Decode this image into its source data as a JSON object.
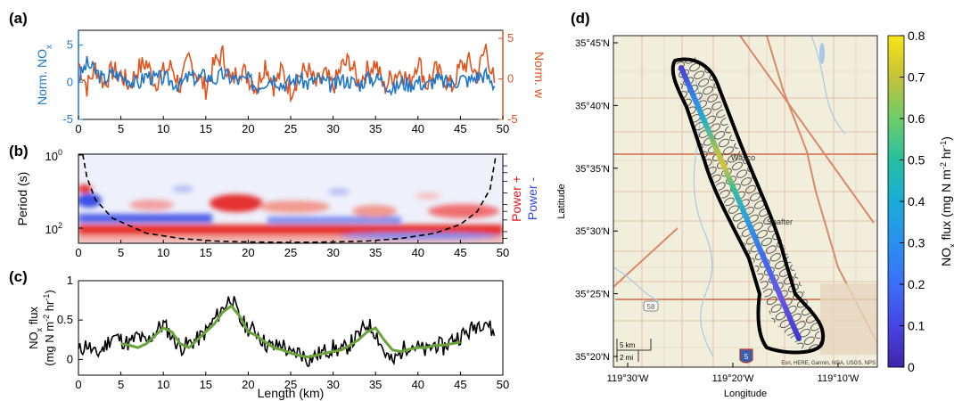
{
  "panel_a": {
    "label": "(a)",
    "left_axis": {
      "label_main": "Norm. NO",
      "label_sub": "x",
      "ticks": [
        "5",
        "0",
        "-5"
      ],
      "color": "#1f77c9"
    },
    "right_axis": {
      "label": "Norm. w",
      "ticks": [
        "5",
        "0",
        "-5"
      ],
      "color": "#e0541d"
    }
  },
  "panel_b": {
    "label": "(b)",
    "ylabel": "Period (s)",
    "yticks": {
      "top_base": "10",
      "top_exp": "0",
      "bottom_base": "10",
      "bottom_exp": "2"
    },
    "legend": {
      "pos": "Power +",
      "neg": "Power -",
      "pos_color": "#e31a1c",
      "neg_color": "#3344ee"
    }
  },
  "panel_c": {
    "label": "(c)",
    "ylabel_line1_main": "NO",
    "ylabel_line1_sub": "x",
    "ylabel_line1_rest": " flux",
    "ylabel_line2": "(mg N m",
    "ylabel_line2_sup1": "-2",
    "ylabel_line2_mid": " hr",
    "ylabel_line2_sup2": "-1",
    "ylabel_line2_end": ")",
    "yticks": [
      "1",
      "0.5",
      "0"
    ],
    "xlabel": "Length (km)",
    "line_color": "#000000",
    "smooth_color": "#6aa33a"
  },
  "shared_x": {
    "ticks": [
      "0",
      "5",
      "10",
      "15",
      "20",
      "25",
      "30",
      "35",
      "40",
      "45",
      "50"
    ],
    "range": [
      0,
      50
    ]
  },
  "panel_d": {
    "label": "(d)",
    "lat_ticks": [
      "35°45'N",
      "35°40'N",
      "35°35'N",
      "35°30'N",
      "35°25'N",
      "35°20'N"
    ],
    "lon_ticks": [
      "119°30'W",
      "119°20'W",
      "119°10'W"
    ],
    "ylabel": "Latitude",
    "xlabel": "Longitude",
    "places": {
      "wasco": "Wasco",
      "shafter": "Shafter"
    },
    "route_shield": "58",
    "interstate_shield": "5",
    "scale": {
      "km": "5 km",
      "mi": "2 mi"
    },
    "attribution": "Esri, HERE, Garmin, NGA, USGS, NPS",
    "colorbar": {
      "ticks": [
        "0.8",
        "0.7",
        "0.6",
        "0.5",
        "0.4",
        "0.3",
        "0.2",
        "0.1",
        "0"
      ],
      "label_main": "NO",
      "label_sub": "x",
      "label_mid": " flux (mg N m",
      "label_sup1": "-2",
      "label_hr": " hr",
      "label_sup2": "-1",
      "label_end": ")",
      "colors": [
        "#3e26a8",
        "#4745e3",
        "#3b6ff6",
        "#2a90ee",
        "#1aacd7",
        "#27bfa0",
        "#6ecc6b",
        "#c4c23a",
        "#f7e418"
      ]
    }
  },
  "chart_data": [
    {
      "type": "line",
      "title": "",
      "xlabel": "",
      "xlim": [
        0,
        50
      ],
      "series": [
        {
          "name": "Norm. NOx",
          "ylim": [
            -5,
            7
          ],
          "x": [
            0,
            1,
            2,
            3,
            4,
            5,
            6,
            7,
            8,
            9,
            10,
            11,
            12,
            13,
            14,
            15,
            16,
            17,
            18,
            19,
            20,
            21,
            22,
            23,
            24,
            25,
            26,
            27,
            28,
            29,
            30,
            31,
            32,
            33,
            34,
            35,
            36,
            37,
            38,
            39,
            40,
            41,
            42,
            43,
            44,
            45,
            46,
            47,
            48,
            49
          ],
          "values": [
            0.5,
            2.5,
            1.5,
            0.3,
            1.2,
            0.8,
            0.4,
            -0.3,
            1.0,
            0.5,
            0.6,
            0.1,
            -0.4,
            0.8,
            0.5,
            1.0,
            0.3,
            1.1,
            0.6,
            0.2,
            0.4,
            -0.6,
            0.2,
            0.7,
            -0.3,
            0.1,
            0.5,
            -0.2,
            0.4,
            0.0,
            -0.5,
            0.3,
            0.2,
            -0.4,
            0.6,
            0.5,
            0.3,
            -1.2,
            0.0,
            -0.3,
            0.2,
            -0.5,
            0.4,
            0.1,
            -0.3,
            0.6,
            0.2,
            0.8,
            1.0,
            -0.5
          ]
        },
        {
          "name": "Norm. w",
          "ylim": [
            -5,
            6
          ],
          "x": [
            0,
            1,
            2,
            3,
            4,
            5,
            6,
            7,
            8,
            9,
            10,
            11,
            12,
            13,
            14,
            15,
            16,
            17,
            18,
            19,
            20,
            21,
            22,
            23,
            24,
            25,
            26,
            27,
            28,
            29,
            30,
            31,
            32,
            33,
            34,
            35,
            36,
            37,
            38,
            39,
            40,
            41,
            42,
            43,
            44,
            45,
            46,
            47,
            48,
            49
          ],
          "values": [
            2.0,
            -1.0,
            1.5,
            -0.5,
            1.0,
            0.5,
            -0.8,
            1.2,
            2.0,
            -0.5,
            0.8,
            1.5,
            -1.0,
            2.5,
            0.5,
            -1.2,
            1.8,
            3.0,
            -0.5,
            1.5,
            0.2,
            -1.0,
            2.0,
            -0.8,
            1.0,
            -1.5,
            0.5,
            1.2,
            -0.8,
            0.5,
            -1.0,
            1.5,
            2.2,
            -0.5,
            1.0,
            2.0,
            -1.2,
            0.5,
            1.0,
            -0.5,
            2.5,
            -0.8,
            1.0,
            0.2,
            -1.0,
            1.5,
            2.0,
            0.5,
            4.0,
            -0.5
          ]
        }
      ]
    },
    {
      "type": "heatmap",
      "title": "",
      "ylabel": "Period (s)",
      "y_scale": "log",
      "ylim": [
        1,
        200
      ],
      "xlim": [
        0,
        50
      ],
      "cone_of_influence": {
        "x": [
          0.5,
          1,
          2,
          4,
          8,
          12,
          16,
          20,
          25,
          30,
          34,
          38,
          42,
          45,
          47,
          48.5,
          49.2
        ],
        "period": [
          1,
          4,
          15,
          45,
          110,
          150,
          175,
          185,
          190,
          185,
          175,
          150,
          110,
          65,
          30,
          8,
          1
        ]
      },
      "features": [
        {
          "name": "Power +",
          "x_range": [
            0,
            50
          ],
          "period_range": [
            90,
            130
          ],
          "strength": "high"
        },
        {
          "name": "Power +",
          "x_range": [
            15,
            20
          ],
          "period_range": [
            30,
            50
          ],
          "strength": "high"
        },
        {
          "name": "Power -",
          "x_range": [
            0,
            12
          ],
          "period_range": [
            50,
            80
          ],
          "strength": "medium"
        }
      ]
    },
    {
      "type": "line",
      "title": "",
      "xlabel": "Length (km)",
      "ylabel": "NOx flux (mg N m-2 hr-1)",
      "ylim": [
        -0.2,
        1
      ],
      "xlim": [
        0,
        50
      ],
      "x": [
        0,
        1,
        2,
        3,
        4,
        5,
        6,
        7,
        8,
        9,
        10,
        11,
        12,
        13,
        14,
        15,
        16,
        17,
        18,
        19,
        20,
        21,
        22,
        23,
        24,
        25,
        26,
        27,
        28,
        29,
        30,
        31,
        32,
        33,
        34,
        35,
        36,
        37,
        38,
        39,
        40,
        41,
        42,
        43,
        44,
        45,
        46,
        47,
        48,
        49
      ],
      "series": [
        {
          "name": "NOx flux",
          "values": [
            0.1,
            0.2,
            0.05,
            0.15,
            0.3,
            0.25,
            0.2,
            0.3,
            0.2,
            0.35,
            0.45,
            0.3,
            0.15,
            0.2,
            0.25,
            0.35,
            0.5,
            0.65,
            0.8,
            0.5,
            0.4,
            0.35,
            0.2,
            0.15,
            0.2,
            0.05,
            0.1,
            0.0,
            0.05,
            0.1,
            0.15,
            0.1,
            0.2,
            0.3,
            0.45,
            0.35,
            0.1,
            -0.05,
            0.1,
            0.2,
            0.15,
            0.1,
            0.2,
            0.15,
            0.25,
            0.3,
            0.35,
            0.45,
            0.5,
            0.3
          ]
        },
        {
          "name": "smoothed",
          "x": [
            5,
            6,
            7,
            8,
            9,
            10,
            11,
            12,
            13,
            14,
            15,
            16,
            17,
            18,
            19,
            20,
            21,
            22,
            23,
            24,
            25,
            26,
            27,
            28,
            29,
            30,
            31,
            32,
            33,
            34,
            35,
            36,
            37,
            38,
            39,
            40,
            41,
            42,
            43,
            44,
            45
          ],
          "values": [
            0.2,
            0.18,
            0.15,
            0.2,
            0.3,
            0.4,
            0.35,
            0.2,
            0.15,
            0.25,
            0.35,
            0.45,
            0.6,
            0.68,
            0.55,
            0.35,
            0.3,
            0.22,
            0.15,
            0.12,
            0.08,
            0.05,
            0.03,
            0.05,
            0.08,
            0.1,
            0.12,
            0.18,
            0.25,
            0.35,
            0.4,
            0.25,
            0.12,
            0.1,
            0.13,
            0.15,
            0.15,
            0.18,
            0.18,
            0.2,
            0.22
          ]
        }
      ]
    },
    {
      "type": "scatter",
      "title": "",
      "xlabel": "Longitude",
      "ylabel": "Latitude",
      "colorbar_range": [
        0,
        0.8
      ],
      "x": [
        -119.35,
        -119.3,
        -119.25,
        -119.2,
        -119.15
      ],
      "y": [
        35.71,
        35.62,
        35.51,
        35.42,
        35.34
      ],
      "values": [
        0.22,
        0.4,
        0.55,
        0.3,
        0.2
      ]
    }
  ]
}
